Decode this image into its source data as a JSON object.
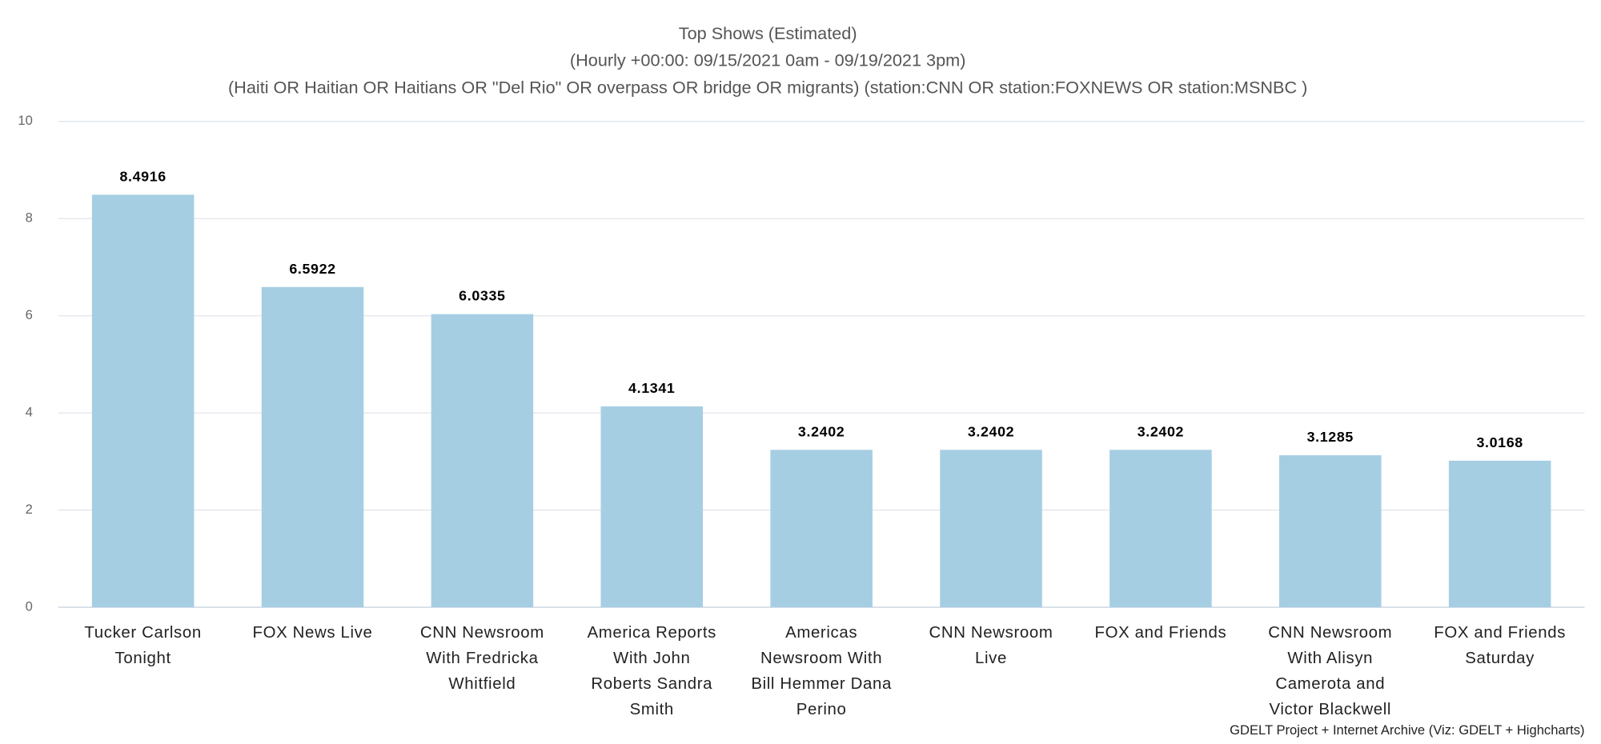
{
  "chart_data": {
    "type": "bar",
    "title": "Top Shows (Estimated)",
    "subtitle": [
      "(Hourly +00:00: 09/15/2021 0am - 09/19/2021 3pm)",
      "(Haiti OR Haitian OR Haitians OR \"Del Rio\" OR overpass OR bridge OR migrants) (station:CNN OR station:FOXNEWS OR station:MSNBC )"
    ],
    "categories": [
      "Tucker Carlson Tonight",
      "FOX News Live",
      "CNN Newsroom With Fredricka Whitfield",
      "America Reports With John Roberts Sandra Smith",
      "Americas Newsroom With Bill Hemmer Dana Perino",
      "CNN Newsroom Live",
      "FOX and Friends",
      "CNN Newsroom With Alisyn Camerota and Victor Blackwell",
      "FOX and Friends Saturday"
    ],
    "values": [
      8.4916,
      6.5922,
      6.0335,
      4.1341,
      3.2402,
      3.2402,
      3.2402,
      3.1285,
      3.0168
    ],
    "color": "#a6cee3",
    "ylim": [
      0,
      10
    ],
    "yticks": [
      0,
      2,
      4,
      6,
      8,
      10
    ],
    "grid": true,
    "credit": "GDELT Project + Internet Archive (Viz: GDELT + Highcharts)"
  }
}
